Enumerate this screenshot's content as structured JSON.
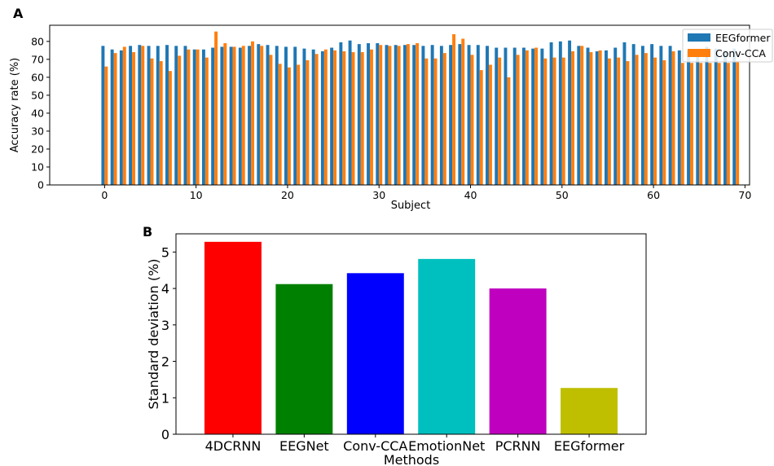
{
  "chart_data": [
    {
      "panel": "A",
      "type": "bar",
      "xlabel": "Subject",
      "ylabel": "Accuracy rate (%)",
      "xlim": [
        -6,
        70.5
      ],
      "ylim": [
        0,
        89
      ],
      "xticks": [
        0,
        10,
        20,
        30,
        40,
        50,
        60,
        70
      ],
      "yticks": [
        0,
        10,
        20,
        30,
        40,
        50,
        60,
        70,
        80
      ],
      "grid": false,
      "legend_position": "top-right",
      "x": [
        0,
        1,
        2,
        3,
        4,
        5,
        6,
        7,
        8,
        9,
        10,
        11,
        12,
        13,
        14,
        15,
        16,
        17,
        18,
        19,
        20,
        21,
        22,
        23,
        24,
        25,
        26,
        27,
        28,
        29,
        30,
        31,
        32,
        33,
        34,
        35,
        36,
        37,
        38,
        39,
        40,
        41,
        42,
        43,
        44,
        45,
        46,
        47,
        48,
        49,
        50,
        51,
        52,
        53,
        54,
        55,
        56,
        57,
        58,
        59,
        60,
        61,
        62,
        63,
        64,
        65,
        66,
        67,
        68,
        69
      ],
      "series": [
        {
          "name": "EEGformer",
          "color": "#1f77b4",
          "values": [
            77.5,
            75.5,
            75,
            77.5,
            78,
            77.5,
            77.5,
            78,
            77.5,
            77.5,
            75.5,
            75.5,
            76.5,
            77,
            77,
            76.5,
            77.5,
            78.5,
            78,
            77.5,
            77,
            77,
            76,
            75.5,
            74.5,
            76.5,
            79.5,
            80.5,
            78.5,
            79,
            79,
            78,
            78,
            78,
            78,
            77.5,
            78,
            77.5,
            78,
            78.5,
            78,
            78,
            77.5,
            76.5,
            76.5,
            76.5,
            76.5,
            76,
            76,
            79.5,
            80,
            80.5,
            77.5,
            76.5,
            74.5,
            75,
            76.5,
            79.5,
            78.5,
            77.5,
            78.5,
            77.5,
            77.5,
            75,
            75,
            75,
            77,
            76,
            75,
            76
          ]
        },
        {
          "name": "Conv-CCA",
          "color": "#ff7f0e",
          "values": [
            66,
            73.5,
            77,
            74,
            77.5,
            70.5,
            69,
            63.5,
            72,
            75.5,
            75.5,
            71,
            85.5,
            79,
            77,
            77.5,
            80,
            77.5,
            72.5,
            67.5,
            65.5,
            67,
            69.5,
            73,
            75.5,
            75,
            74.5,
            74,
            74,
            75.5,
            78,
            77.5,
            77.5,
            78.5,
            79,
            70.5,
            70.5,
            73.5,
            84,
            81.5,
            72.5,
            64,
            67,
            71,
            60,
            72.5,
            75,
            76.5,
            70.5,
            71,
            71,
            74.5,
            77.5,
            74,
            75,
            70.5,
            71,
            69,
            72.5,
            73.5,
            71,
            69.5,
            74.5,
            68,
            68,
            68,
            68,
            68,
            68,
            69
          ]
        }
      ]
    },
    {
      "panel": "B",
      "type": "bar",
      "xlabel": "Methods",
      "ylabel": "Standard deviation (%)",
      "ylim": [
        0,
        5.5
      ],
      "yticks": [
        0,
        1,
        2,
        3,
        4,
        5
      ],
      "grid": false,
      "categories": [
        "4DCRNN",
        "EEGNet",
        "Conv-CCA",
        "EmotionNet",
        "PCRNN",
        "EEGformer"
      ],
      "values": [
        5.28,
        4.12,
        4.42,
        4.81,
        4.0,
        1.27
      ],
      "colors": [
        "#ff0000",
        "#008000",
        "#0000ff",
        "#00bfbf",
        "#bf00bf",
        "#bfbf00"
      ]
    }
  ],
  "labels": {
    "panel_a": "A",
    "panel_b": "B"
  }
}
